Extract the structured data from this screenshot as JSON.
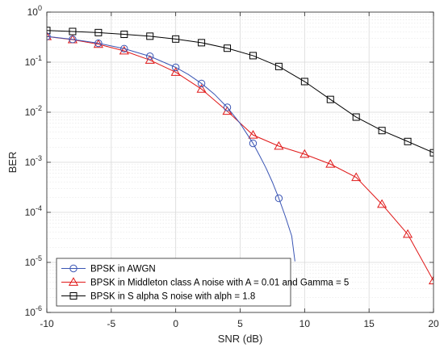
{
  "chart_data": {
    "type": "line",
    "xlabel": "SNR (dB)",
    "ylabel": "BER",
    "xlim": [
      -10,
      20
    ],
    "ylim": [
      1e-06,
      1
    ],
    "y_scale": "log",
    "grid": true,
    "minor_grid": true,
    "legend_position": "bottom-left",
    "x_ticks": [
      "-10",
      "-5",
      "0",
      "5",
      "10",
      "15",
      "20"
    ],
    "y_ticks": [
      {
        "base": "10",
        "exp": "0"
      },
      {
        "base": "10",
        "exp": "-1"
      },
      {
        "base": "10",
        "exp": "-2"
      },
      {
        "base": "10",
        "exp": "-3"
      },
      {
        "base": "10",
        "exp": "-4"
      },
      {
        "base": "10",
        "exp": "-5"
      },
      {
        "base": "10",
        "exp": "-6"
      }
    ],
    "series": [
      {
        "name": "BPSK in AWGN",
        "color": "#3a55b4",
        "marker": "circle",
        "markers": {
          "x": [
            -10,
            -8,
            -6,
            -4,
            -2,
            0,
            2,
            4,
            6,
            8
          ],
          "y": [
            0.327,
            0.286,
            0.239,
            0.186,
            0.131,
            0.0786,
            0.0375,
            0.0125,
            0.00239,
            0.000191
          ]
        },
        "curve": {
          "x": [
            -10,
            -8,
            -6,
            -4,
            -2,
            0,
            1,
            2,
            3,
            4,
            5,
            6,
            6.5,
            7,
            7.5,
            8,
            8.5,
            9,
            9.25
          ],
          "y": [
            0.327,
            0.286,
            0.239,
            0.186,
            0.131,
            0.0786,
            0.0563,
            0.0375,
            0.0229,
            0.0125,
            0.00595,
            0.00239,
            0.00137,
            0.000773,
            0.000401,
            0.000191,
            8.34e-05,
            3.36e-05,
            1.05e-05
          ]
        }
      },
      {
        "name": "BPSK in Middleton class A noise with A = 0.01 and Gamma = 5",
        "color": "#e01818",
        "marker": "triangle",
        "markers": {
          "x": [
            -10,
            -8,
            -6,
            -4,
            -2,
            0,
            2,
            4,
            6,
            8,
            10,
            12,
            14,
            16,
            18,
            20
          ],
          "y": [
            0.325,
            0.282,
            0.228,
            0.168,
            0.11,
            0.063,
            0.029,
            0.0105,
            0.0035,
            0.0021,
            0.00145,
            0.00092,
            0.0005,
            0.000145,
            3.65e-05,
            4.3e-06
          ]
        }
      },
      {
        "name": "BPSK in S alpha S noise with alph = 1.8",
        "color": "#000000",
        "marker": "square",
        "markers": {
          "x": [
            -10,
            -8,
            -6,
            -4,
            -2,
            0,
            2,
            4,
            6,
            8,
            10,
            12,
            14,
            16,
            18,
            20
          ],
          "y": [
            0.43,
            0.41,
            0.39,
            0.36,
            0.33,
            0.29,
            0.245,
            0.19,
            0.135,
            0.082,
            0.041,
            0.018,
            0.008,
            0.0043,
            0.0026,
            0.00155
          ]
        }
      }
    ]
  }
}
